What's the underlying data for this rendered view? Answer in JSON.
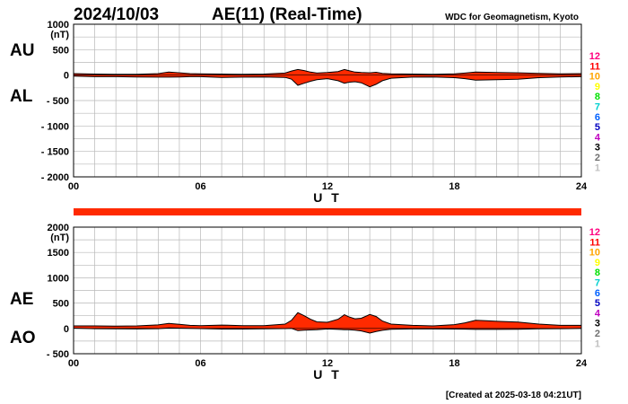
{
  "header": {
    "date": "2024/10/03",
    "title": "AE(11) (Real-Time)",
    "source": "WDC for Geomagnetism, Kyoto"
  },
  "footer": {
    "created": "[Created at 2025-03-18 04:21UT]"
  },
  "station_legend": {
    "labels": [
      "12",
      "11",
      "10",
      "9",
      "8",
      "7",
      "6",
      "5",
      "4",
      "3",
      "2",
      "1"
    ],
    "colors": [
      "#ff007f",
      "#ff0000",
      "#ffa500",
      "#ffff00",
      "#00e000",
      "#00d0d0",
      "#0060ff",
      "#0000c0",
      "#c000c0",
      "#000000",
      "#707070",
      "#c0c0c0"
    ]
  },
  "colors": {
    "fill": "#ff2a00",
    "stroke": "#000000",
    "grid": "#b8b8b8",
    "bar": "#ff2a00"
  },
  "chart_data": [
    {
      "id": "au-al",
      "type": "area",
      "unit": "(nT)",
      "xlabel": "U T",
      "xticks": [
        "00",
        "06",
        "12",
        "18",
        "24"
      ],
      "xlim": [
        0,
        24
      ],
      "ylim": [
        -2000,
        1000
      ],
      "ytick_labels": [
        "1000",
        "500",
        "0",
        "- 500",
        "- 1000",
        "- 1500",
        "- 2000"
      ],
      "grid": true,
      "series_labels": [
        "AU",
        "AL"
      ],
      "x": [
        0,
        1,
        2,
        3,
        4,
        4.5,
        5,
        5.5,
        6,
        7,
        8,
        9,
        10,
        10.3,
        10.6,
        10.9,
        11.2,
        11.5,
        12,
        12.5,
        12.8,
        13,
        13.3,
        13.6,
        14,
        14.3,
        14.6,
        15,
        16,
        17,
        18,
        18.5,
        19,
        19.5,
        20,
        21,
        22,
        23,
        24
      ],
      "series": [
        {
          "name": "AU",
          "values": [
            30,
            20,
            15,
            15,
            30,
            60,
            45,
            30,
            25,
            20,
            15,
            20,
            40,
            80,
            110,
            90,
            60,
            40,
            50,
            70,
            110,
            90,
            60,
            50,
            45,
            55,
            35,
            25,
            20,
            15,
            25,
            40,
            60,
            55,
            50,
            45,
            35,
            25,
            30
          ]
        },
        {
          "name": "AL",
          "values": [
            -20,
            -30,
            -30,
            -35,
            -40,
            -40,
            -35,
            -30,
            -30,
            -45,
            -40,
            -35,
            -45,
            -80,
            -200,
            -160,
            -120,
            -90,
            -70,
            -110,
            -160,
            -140,
            -130,
            -150,
            -230,
            -180,
            -110,
            -60,
            -40,
            -35,
            -50,
            -70,
            -100,
            -95,
            -90,
            -80,
            -50,
            -35,
            -30
          ]
        }
      ]
    },
    {
      "id": "ae-ao",
      "type": "area",
      "unit": "(nT)",
      "xlabel": "U T",
      "xticks": [
        "00",
        "06",
        "12",
        "18",
        "24"
      ],
      "xlim": [
        0,
        24
      ],
      "ylim": [
        -500,
        2000
      ],
      "ytick_labels": [
        "2000",
        "1500",
        "1000",
        "500",
        "0",
        "- 500"
      ],
      "grid": true,
      "series_labels": [
        "AE",
        "AO"
      ],
      "x": [
        0,
        1,
        2,
        3,
        4,
        4.5,
        5,
        5.5,
        6,
        7,
        8,
        9,
        10,
        10.3,
        10.6,
        10.9,
        11.2,
        11.5,
        12,
        12.5,
        12.8,
        13,
        13.3,
        13.6,
        14,
        14.3,
        14.6,
        15,
        16,
        17,
        18,
        18.5,
        19,
        19.5,
        20,
        21,
        22,
        23,
        24
      ],
      "series": [
        {
          "name": "AE",
          "values": [
            50,
            50,
            45,
            50,
            70,
            100,
            80,
            60,
            55,
            65,
            55,
            55,
            85,
            160,
            310,
            250,
            180,
            130,
            120,
            180,
            270,
            230,
            190,
            200,
            275,
            235,
            145,
            85,
            60,
            50,
            75,
            110,
            160,
            150,
            140,
            125,
            85,
            60,
            60
          ]
        },
        {
          "name": "AO",
          "values": [
            5,
            -5,
            -8,
            -10,
            -5,
            10,
            5,
            0,
            -3,
            -13,
            -13,
            -8,
            -3,
            0,
            -45,
            -35,
            -30,
            -25,
            -10,
            -20,
            -25,
            -25,
            -35,
            -50,
            -92,
            -62,
            -38,
            -18,
            -10,
            -10,
            -13,
            -15,
            -20,
            -20,
            -20,
            -18,
            -8,
            -5,
            0
          ]
        }
      ]
    }
  ]
}
